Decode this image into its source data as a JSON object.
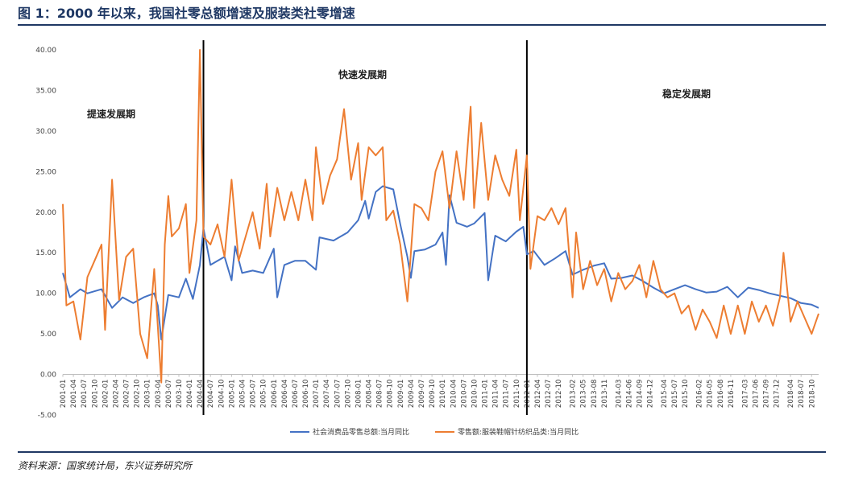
{
  "figure": {
    "title": "图 1：2000 年以来，我国社零总额增速及服装类社零增速",
    "source": "资料来源：国家统计局，东兴证券研究所"
  },
  "colors": {
    "series1": "#4472c4",
    "series2": "#ed7d31",
    "accent": "#1f3864"
  },
  "chart_data": {
    "type": "line",
    "title": "",
    "xlabel": "",
    "ylabel": "",
    "ylim": [
      -5,
      40
    ],
    "yticks": [
      "40.00",
      "35.00",
      "30.00",
      "25.00",
      "20.00",
      "15.00",
      "10.00",
      "5.00",
      "0.00",
      "-5.00"
    ],
    "x_start": "2001-01",
    "x_end": "2018-12",
    "xtick_labels": [
      "2001-01",
      "2001-04",
      "2001-07",
      "2001-10",
      "2002-01",
      "2002-04",
      "2002-07",
      "2002-10",
      "2003-01",
      "2003-04",
      "2003-07",
      "2003-10",
      "2004-01",
      "2004-04",
      "2004-07",
      "2004-10",
      "2005-01",
      "2005-04",
      "2005-07",
      "2005-10",
      "2006-01",
      "2006-04",
      "2006-07",
      "2006-10",
      "2007-01",
      "2007-04",
      "2007-07",
      "2007-10",
      "2008-01",
      "2008-04",
      "2008-07",
      "2008-10",
      "2009-01",
      "2009-04",
      "2009-07",
      "2009-10",
      "2010-01",
      "2010-04",
      "2010-07",
      "2010-10",
      "2011-01",
      "2011-04",
      "2011-07",
      "2011-10",
      "2012-01",
      "2012-04",
      "2012-07",
      "2012-10",
      "2013-02",
      "2013-05",
      "2013-08",
      "2013-11",
      "2014-03",
      "2014-06",
      "2014-09",
      "2014-12",
      "2015-04",
      "2015-07",
      "2015-10",
      "2016-02",
      "2016-05",
      "2016-08",
      "2016-11",
      "2017-03",
      "2017-06",
      "2017-09",
      "2017-12",
      "2018-04",
      "2018-07",
      "2018-10"
    ],
    "grid": false,
    "legend_position": "bottom",
    "annotations": {
      "phase1": "提速发展期",
      "phase2": "快速发展期",
      "phase3": "稳定发展期"
    },
    "phase_dividers": [
      "2004-05",
      "2012-01"
    ],
    "series": [
      {
        "name": "社会消费品零售总额:当月同比",
        "color": "#4472c4",
        "points": [
          [
            "2001-01",
            12.5
          ],
          [
            "2001-03",
            9.5
          ],
          [
            "2001-06",
            10.5
          ],
          [
            "2001-08",
            10
          ],
          [
            "2001-12",
            10.5
          ],
          [
            "2002-03",
            8.2
          ],
          [
            "2002-06",
            9.5
          ],
          [
            "2002-09",
            8.8
          ],
          [
            "2002-12",
            9.5
          ],
          [
            "2003-03",
            10.0
          ],
          [
            "2003-04",
            8.5
          ],
          [
            "2003-05",
            4.3
          ],
          [
            "2003-07",
            9.8
          ],
          [
            "2003-10",
            9.5
          ],
          [
            "2003-12",
            11.8
          ],
          [
            "2004-02",
            9.3
          ],
          [
            "2004-04",
            13.5
          ],
          [
            "2004-05",
            18.0
          ],
          [
            "2004-07",
            13.5
          ],
          [
            "2004-09",
            14.0
          ],
          [
            "2004-11",
            14.5
          ],
          [
            "2005-01",
            11.6
          ],
          [
            "2005-02",
            15.8
          ],
          [
            "2005-04",
            12.5
          ],
          [
            "2005-07",
            12.8
          ],
          [
            "2005-10",
            12.5
          ],
          [
            "2006-01",
            15.5
          ],
          [
            "2006-02",
            9.5
          ],
          [
            "2006-04",
            13.5
          ],
          [
            "2006-07",
            14.0
          ],
          [
            "2006-10",
            14.0
          ],
          [
            "2007-01",
            12.9
          ],
          [
            "2007-02",
            16.9
          ],
          [
            "2007-06",
            16.5
          ],
          [
            "2007-10",
            17.5
          ],
          [
            "2008-01",
            19.0
          ],
          [
            "2008-03",
            21.4
          ],
          [
            "2008-04",
            19.2
          ],
          [
            "2008-06",
            22.5
          ],
          [
            "2008-08",
            23.2
          ],
          [
            "2008-11",
            22.8
          ],
          [
            "2009-01",
            18.5
          ],
          [
            "2009-03",
            14.5
          ],
          [
            "2009-04",
            11.9
          ],
          [
            "2009-05",
            15.2
          ],
          [
            "2009-08",
            15.4
          ],
          [
            "2009-11",
            16.0
          ],
          [
            "2010-01",
            17.5
          ],
          [
            "2010-02",
            13.5
          ],
          [
            "2010-03",
            22.1
          ],
          [
            "2010-05",
            18.7
          ],
          [
            "2010-08",
            18.2
          ],
          [
            "2010-10",
            18.6
          ],
          [
            "2011-01",
            19.9
          ],
          [
            "2011-02",
            11.6
          ],
          [
            "2011-04",
            17.1
          ],
          [
            "2011-07",
            16.4
          ],
          [
            "2011-10",
            17.6
          ],
          [
            "2011-12",
            18.2
          ],
          [
            "2012-01",
            14.8
          ],
          [
            "2012-03",
            15.2
          ],
          [
            "2012-06",
            13.5
          ],
          [
            "2012-09",
            14.3
          ],
          [
            "2012-12",
            15.2
          ],
          [
            "2013-02",
            12.3
          ],
          [
            "2013-05",
            12.9
          ],
          [
            "2013-08",
            13.4
          ],
          [
            "2013-11",
            13.7
          ],
          [
            "2014-01",
            11.8
          ],
          [
            "2014-04",
            11.9
          ],
          [
            "2014-07",
            12.2
          ],
          [
            "2014-10",
            11.5
          ],
          [
            "2015-01",
            10.7
          ],
          [
            "2015-04",
            10.0
          ],
          [
            "2015-07",
            10.5
          ],
          [
            "2015-10",
            11.0
          ],
          [
            "2016-01",
            10.5
          ],
          [
            "2016-04",
            10.1
          ],
          [
            "2016-07",
            10.2
          ],
          [
            "2016-10",
            10.8
          ],
          [
            "2017-01",
            9.5
          ],
          [
            "2017-04",
            10.7
          ],
          [
            "2017-07",
            10.4
          ],
          [
            "2017-10",
            10.0
          ],
          [
            "2018-01",
            9.7
          ],
          [
            "2018-04",
            9.4
          ],
          [
            "2018-07",
            8.8
          ],
          [
            "2018-10",
            8.6
          ],
          [
            "2018-12",
            8.2
          ]
        ]
      },
      {
        "name": "零售额:服装鞋帽针纺织品类:当月同比",
        "color": "#ed7d31",
        "points": [
          [
            "2001-01",
            21
          ],
          [
            "2001-02",
            8.5
          ],
          [
            "2001-04",
            9
          ],
          [
            "2001-06",
            4.3
          ],
          [
            "2001-08",
            12
          ],
          [
            "2001-10",
            14
          ],
          [
            "2001-12",
            16
          ],
          [
            "2002-01",
            5.5
          ],
          [
            "2002-03",
            24
          ],
          [
            "2002-05",
            9.2
          ],
          [
            "2002-07",
            14.5
          ],
          [
            "2002-09",
            15.5
          ],
          [
            "2002-11",
            5
          ],
          [
            "2003-01",
            2
          ],
          [
            "2003-03",
            13
          ],
          [
            "2003-05",
            -1
          ],
          [
            "2003-06",
            16
          ],
          [
            "2003-07",
            22
          ],
          [
            "2003-08",
            17
          ],
          [
            "2003-10",
            18
          ],
          [
            "2003-12",
            21
          ],
          [
            "2004-01",
            12.5
          ],
          [
            "2004-03",
            19
          ],
          [
            "2004-04",
            40
          ],
          [
            "2004-05",
            17
          ],
          [
            "2004-07",
            16
          ],
          [
            "2004-09",
            18.5
          ],
          [
            "2004-11",
            14.5
          ],
          [
            "2005-01",
            24
          ],
          [
            "2005-03",
            14
          ],
          [
            "2005-05",
            17
          ],
          [
            "2005-07",
            20
          ],
          [
            "2005-09",
            15.5
          ],
          [
            "2005-11",
            23.5
          ],
          [
            "2005-12",
            17
          ],
          [
            "2006-02",
            23
          ],
          [
            "2006-04",
            19
          ],
          [
            "2006-06",
            22.5
          ],
          [
            "2006-08",
            19
          ],
          [
            "2006-10",
            24
          ],
          [
            "2006-12",
            19
          ],
          [
            "2007-01",
            28
          ],
          [
            "2007-03",
            21
          ],
          [
            "2007-05",
            24.5
          ],
          [
            "2007-07",
            26.5
          ],
          [
            "2007-09",
            32.7
          ],
          [
            "2007-11",
            24
          ],
          [
            "2008-01",
            28.5
          ],
          [
            "2008-02",
            21.5
          ],
          [
            "2008-04",
            28
          ],
          [
            "2008-06",
            27
          ],
          [
            "2008-08",
            28
          ],
          [
            "2008-09",
            19
          ],
          [
            "2008-11",
            20.2
          ],
          [
            "2009-01",
            16
          ],
          [
            "2009-03",
            9
          ],
          [
            "2009-05",
            21
          ],
          [
            "2009-07",
            20.5
          ],
          [
            "2009-09",
            19
          ],
          [
            "2009-11",
            25
          ],
          [
            "2010-01",
            27.5
          ],
          [
            "2010-03",
            20.5
          ],
          [
            "2010-05",
            27.5
          ],
          [
            "2010-07",
            21.5
          ],
          [
            "2010-09",
            33
          ],
          [
            "2010-10",
            20.5
          ],
          [
            "2010-12",
            31
          ],
          [
            "2011-02",
            21.5
          ],
          [
            "2011-04",
            27
          ],
          [
            "2011-06",
            24
          ],
          [
            "2011-08",
            22
          ],
          [
            "2011-10",
            27.7
          ],
          [
            "2011-11",
            19
          ],
          [
            "2012-01",
            27
          ],
          [
            "2012-02",
            13
          ],
          [
            "2012-04",
            19.5
          ],
          [
            "2012-06",
            19
          ],
          [
            "2012-08",
            20.5
          ],
          [
            "2012-10",
            18.5
          ],
          [
            "2012-12",
            20.5
          ],
          [
            "2013-02",
            9.5
          ],
          [
            "2013-03",
            17.5
          ],
          [
            "2013-05",
            10.5
          ],
          [
            "2013-07",
            14
          ],
          [
            "2013-09",
            11
          ],
          [
            "2013-11",
            13
          ],
          [
            "2014-01",
            9
          ],
          [
            "2014-03",
            12.5
          ],
          [
            "2014-05",
            10.5
          ],
          [
            "2014-07",
            11.5
          ],
          [
            "2014-09",
            13.5
          ],
          [
            "2014-11",
            9.5
          ],
          [
            "2015-01",
            14
          ],
          [
            "2015-03",
            10.5
          ],
          [
            "2015-05",
            9.5
          ],
          [
            "2015-07",
            10
          ],
          [
            "2015-09",
            7.5
          ],
          [
            "2015-11",
            8.5
          ],
          [
            "2016-01",
            5.5
          ],
          [
            "2016-03",
            8
          ],
          [
            "2016-05",
            6.5
          ],
          [
            "2016-07",
            4.5
          ],
          [
            "2016-09",
            8.5
          ],
          [
            "2016-11",
            5
          ],
          [
            "2017-01",
            8.5
          ],
          [
            "2017-03",
            5
          ],
          [
            "2017-05",
            9
          ],
          [
            "2017-07",
            6.5
          ],
          [
            "2017-09",
            8.5
          ],
          [
            "2017-11",
            6
          ],
          [
            "2018-01",
            9.5
          ],
          [
            "2018-02",
            15
          ],
          [
            "2018-04",
            6.5
          ],
          [
            "2018-06",
            9
          ],
          [
            "2018-08",
            7
          ],
          [
            "2018-10",
            5
          ],
          [
            "2018-12",
            7.5
          ]
        ]
      }
    ]
  }
}
